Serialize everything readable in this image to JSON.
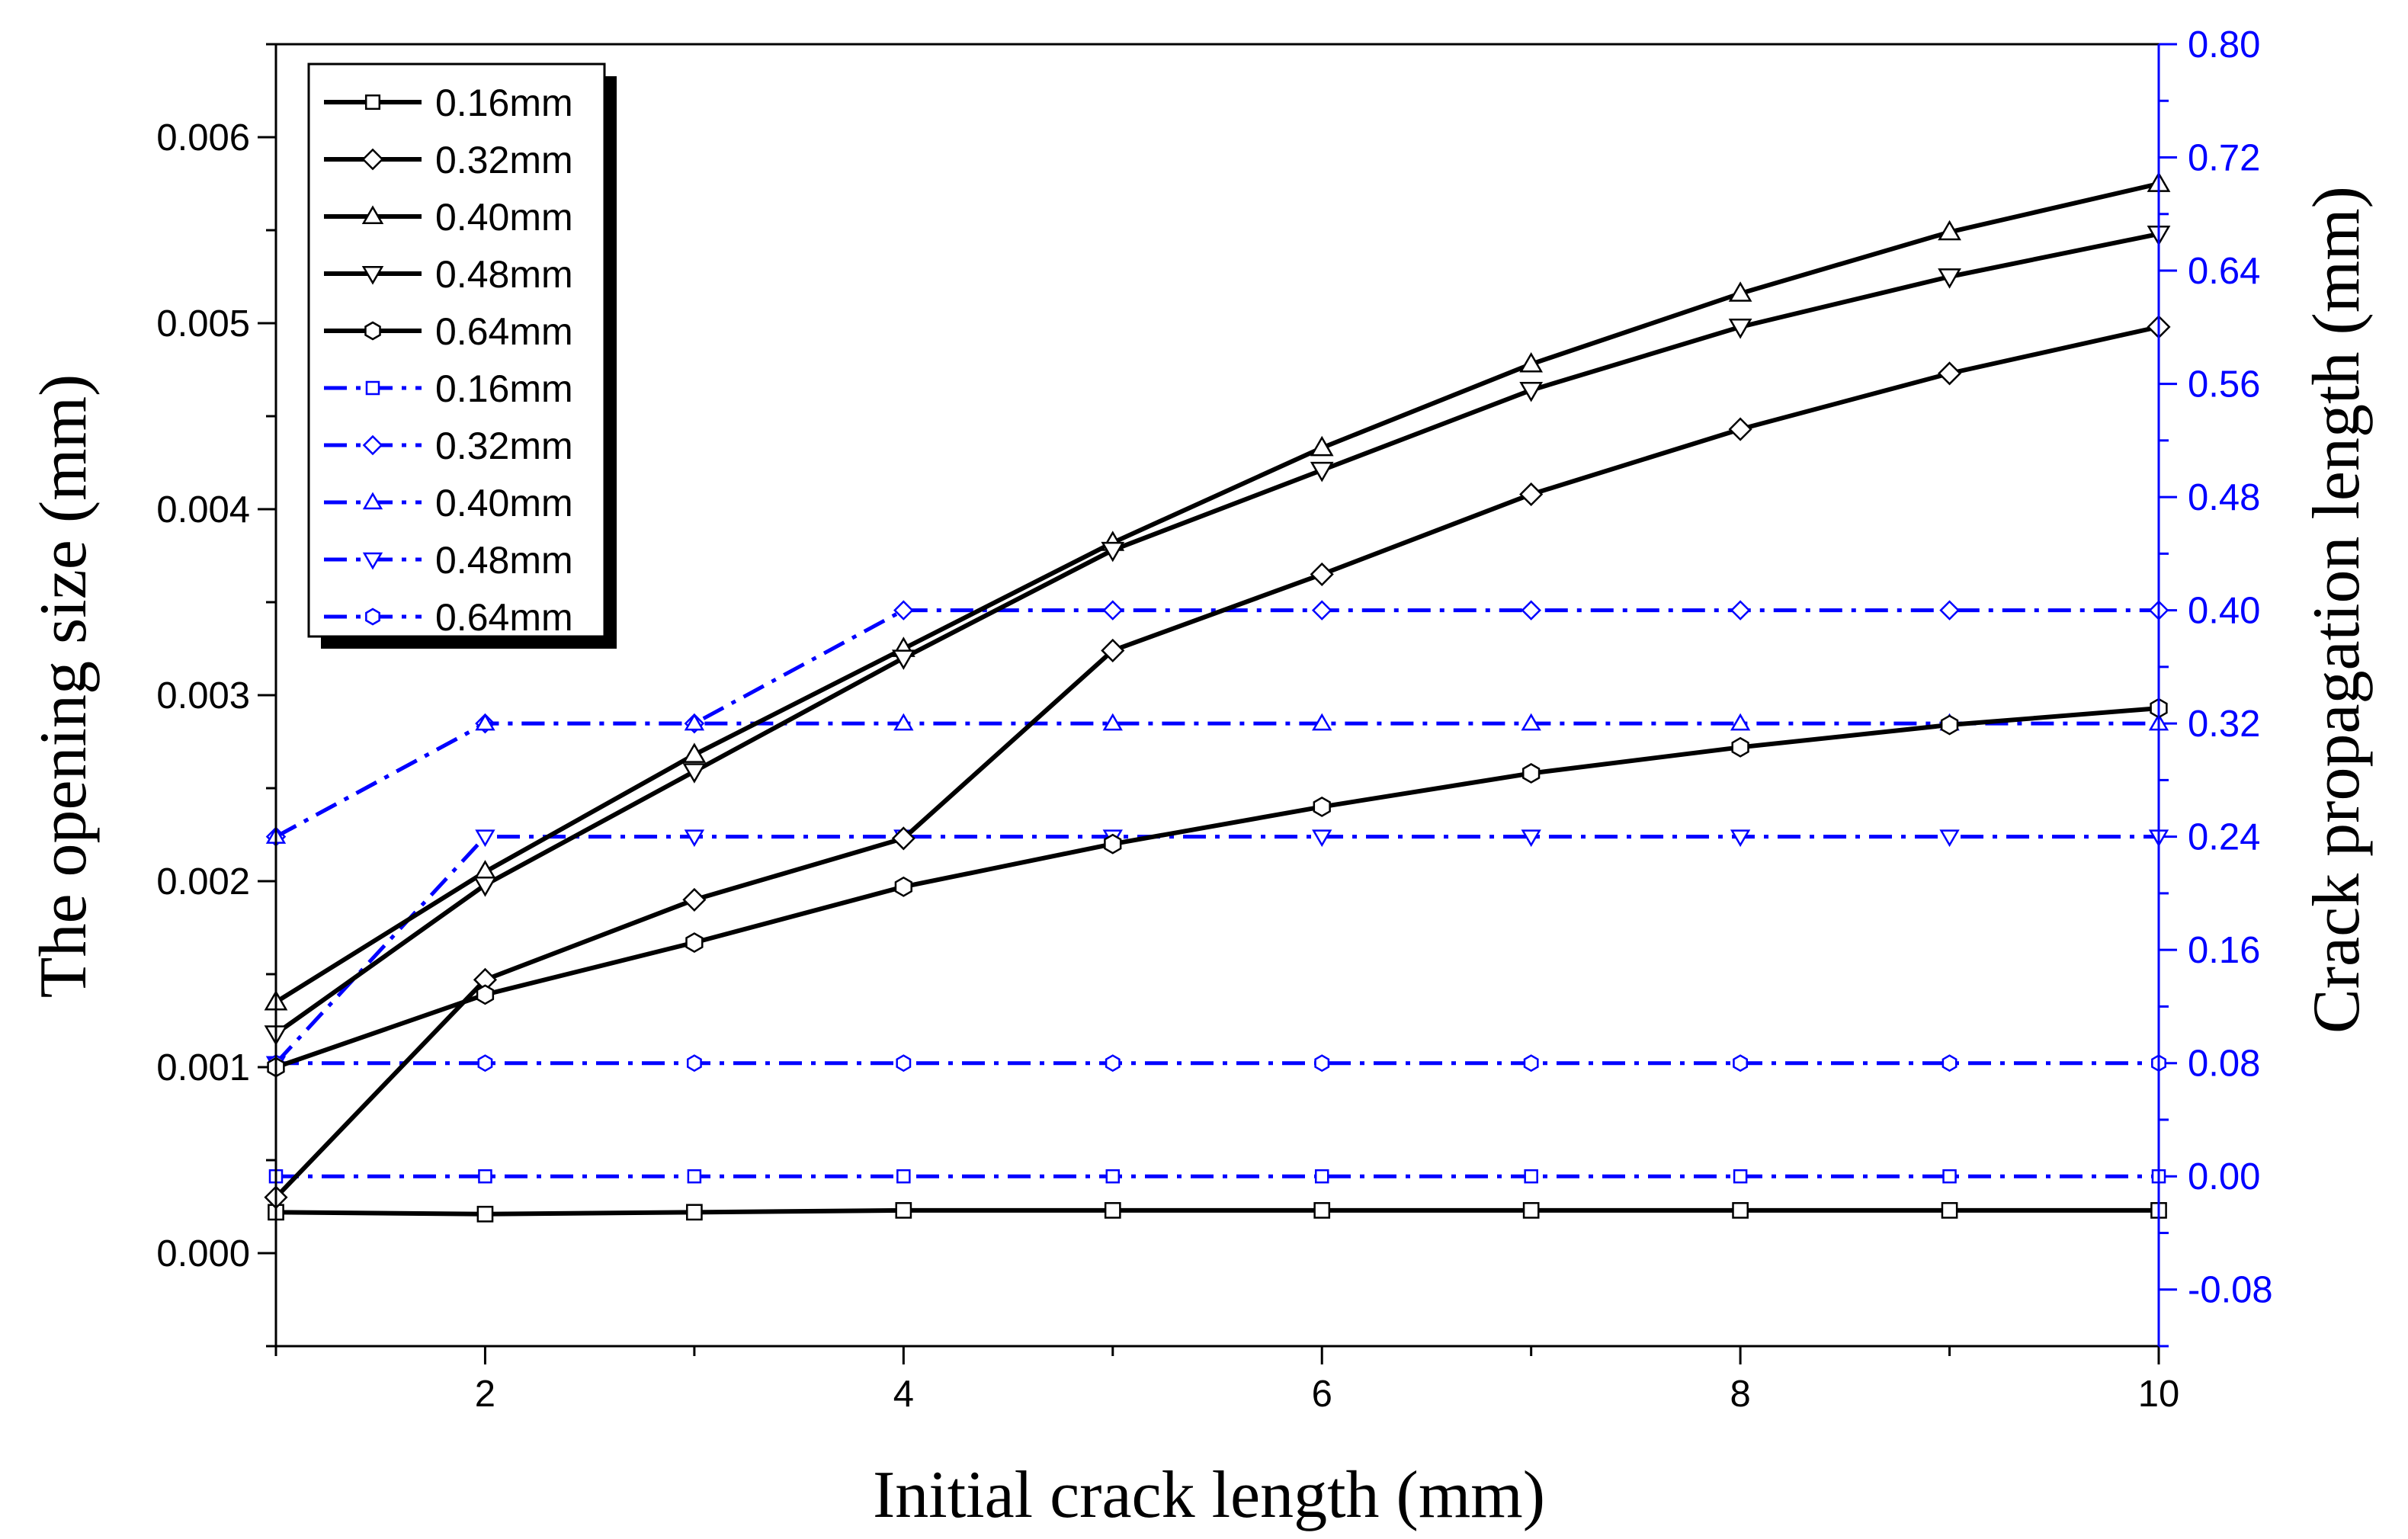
{
  "chart_data": {
    "type": "line",
    "title": "",
    "xlabel": "Initial crack length (mm)",
    "ylabel_left": "The opening size (mm)",
    "ylabel_right": "Crack propagation length (mm)",
    "xlim": [
      1,
      10
    ],
    "ylim_left": [
      -0.0005,
      0.0065
    ],
    "ylim_right": [
      -0.12,
      0.8
    ],
    "x_ticks": [
      "2",
      "4",
      "6",
      "8",
      "10"
    ],
    "y_left_ticks": [
      "0.000",
      "0.001",
      "0.002",
      "0.003",
      "0.004",
      "0.005",
      "0.006"
    ],
    "y_right_ticks": [
      "-0.08",
      "0.00",
      "0.08",
      "0.16",
      "0.24",
      "0.32",
      "0.40",
      "0.48",
      "0.56",
      "0.64",
      "0.72",
      "0.80"
    ],
    "grid": false,
    "legend_position": "top-left",
    "colors": {
      "opening": "#000000",
      "propagation": "#0000ff",
      "right_axis": "#0000ff"
    },
    "x": [
      1,
      2,
      3,
      4,
      5,
      6,
      7,
      8,
      9,
      10
    ],
    "series": [
      {
        "name": "0.16mm",
        "axis": "left",
        "marker": "square",
        "style": "solid",
        "values": [
          0.00022,
          0.00021,
          0.00022,
          0.00023,
          0.00023,
          0.00023,
          0.00023,
          0.00023,
          0.00023,
          0.00023
        ]
      },
      {
        "name": "0.32mm",
        "axis": "left",
        "marker": "diamond",
        "style": "solid",
        "values": [
          0.0003,
          0.00147,
          0.0019,
          0.00223,
          0.00324,
          0.00365,
          0.00408,
          0.00443,
          0.00473,
          0.00498
        ]
      },
      {
        "name": "0.40mm",
        "axis": "left",
        "marker": "triangle-up",
        "style": "solid",
        "values": [
          0.00135,
          0.00205,
          0.00268,
          0.00325,
          0.00382,
          0.00433,
          0.00478,
          0.00516,
          0.00549,
          0.00575
        ]
      },
      {
        "name": "0.48mm",
        "axis": "left",
        "marker": "triangle-down",
        "style": "solid",
        "values": [
          0.00118,
          0.00198,
          0.00259,
          0.0032,
          0.00378,
          0.00421,
          0.00464,
          0.00498,
          0.00525,
          0.00548
        ]
      },
      {
        "name": "0.64mm",
        "axis": "left",
        "marker": "hexagon",
        "style": "solid",
        "values": [
          0.001,
          0.00139,
          0.00167,
          0.00197,
          0.0022,
          0.0024,
          0.00258,
          0.00272,
          0.00284,
          0.00293
        ]
      },
      {
        "name": "0.16mm",
        "axis": "right",
        "marker": "square",
        "style": "dash-dot",
        "values": [
          0.0,
          0.0,
          0.0,
          0.0,
          0.0,
          0.0,
          0.0,
          0.0,
          0.0,
          0.0
        ]
      },
      {
        "name": "0.32mm",
        "axis": "right",
        "marker": "diamond",
        "style": "dash-dot",
        "values": [
          0.24,
          0.32,
          0.32,
          0.4,
          0.4,
          0.4,
          0.4,
          0.4,
          0.4,
          0.4
        ]
      },
      {
        "name": "0.40mm",
        "axis": "right",
        "marker": "triangle-up",
        "style": "dash-dot",
        "values": [
          0.24,
          0.32,
          0.32,
          0.32,
          0.32,
          0.32,
          0.32,
          0.32,
          0.32,
          0.32
        ]
      },
      {
        "name": "0.48mm",
        "axis": "right",
        "marker": "triangle-down",
        "style": "dash-dot",
        "values": [
          0.08,
          0.24,
          0.24,
          0.24,
          0.24,
          0.24,
          0.24,
          0.24,
          0.24,
          0.24
        ]
      },
      {
        "name": "0.64mm",
        "axis": "right",
        "marker": "hexagon",
        "style": "dash-dot",
        "values": [
          0.08,
          0.08,
          0.08,
          0.08,
          0.08,
          0.08,
          0.08,
          0.08,
          0.08,
          0.08
        ]
      }
    ]
  }
}
